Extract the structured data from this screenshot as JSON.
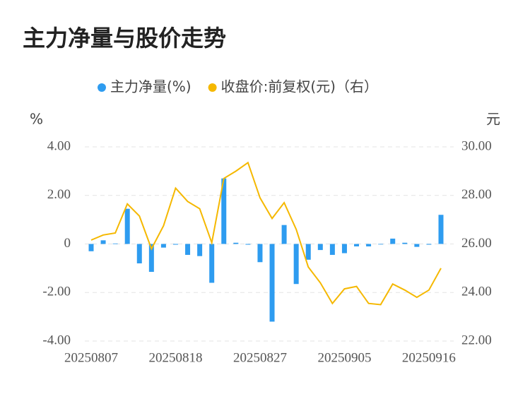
{
  "chart_data": {
    "type": "bar-line",
    "title": "主力净量与股价走势",
    "ylabel": "%",
    "y2label": "元",
    "categories": [
      "20250807",
      null,
      null,
      null,
      null,
      null,
      null,
      "20250818",
      null,
      null,
      null,
      null,
      null,
      null,
      "20250827",
      null,
      null,
      null,
      null,
      null,
      null,
      "20250905",
      null,
      null,
      null,
      null,
      null,
      null,
      "20250916",
      null
    ],
    "series": [
      {
        "name": "主力净量(%)",
        "color": "#2e9cf0",
        "kind": "bar",
        "values": [
          -0.3,
          0.15,
          0.02,
          1.45,
          -0.8,
          -1.15,
          -0.15,
          -0.03,
          -0.45,
          -0.5,
          -1.6,
          2.7,
          0.05,
          -0.03,
          -0.75,
          -3.2,
          0.78,
          -1.65,
          -0.65,
          -0.25,
          -0.45,
          -0.38,
          -0.1,
          -0.1,
          0.0,
          0.22,
          0.05,
          -0.12,
          -0.03,
          1.2
        ]
      },
      {
        "name": "收盘价:前复权(元)（右）",
        "color": "#f5b800",
        "kind": "line",
        "axis": "y2",
        "values": [
          26.16,
          26.37,
          26.45,
          27.65,
          27.15,
          25.8,
          26.75,
          28.3,
          27.75,
          27.45,
          26.05,
          28.7,
          29.0,
          29.35,
          27.9,
          27.05,
          27.7,
          26.6,
          25.05,
          24.4,
          23.55,
          24.15,
          24.25,
          23.55,
          23.5,
          24.35,
          24.1,
          23.8,
          24.1,
          25.0
        ]
      }
    ],
    "ylim": [
      -4,
      4
    ],
    "yticks": [
      {
        "value": -4,
        "label": "-4.00"
      },
      {
        "value": -2,
        "label": "-2.00"
      },
      0,
      {
        "value": 2,
        "label": "2.00"
      },
      {
        "value": 4,
        "label": "4.00"
      }
    ],
    "y2lim": [
      22,
      30
    ],
    "y2ticks": [
      {
        "value": 22,
        "label": "22.00"
      },
      {
        "value": 24,
        "label": "24.00"
      },
      {
        "value": 26,
        "label": "26.00"
      },
      {
        "value": 28,
        "label": "28.00"
      },
      {
        "value": 30,
        "label": "30.00"
      }
    ],
    "grid": true
  }
}
